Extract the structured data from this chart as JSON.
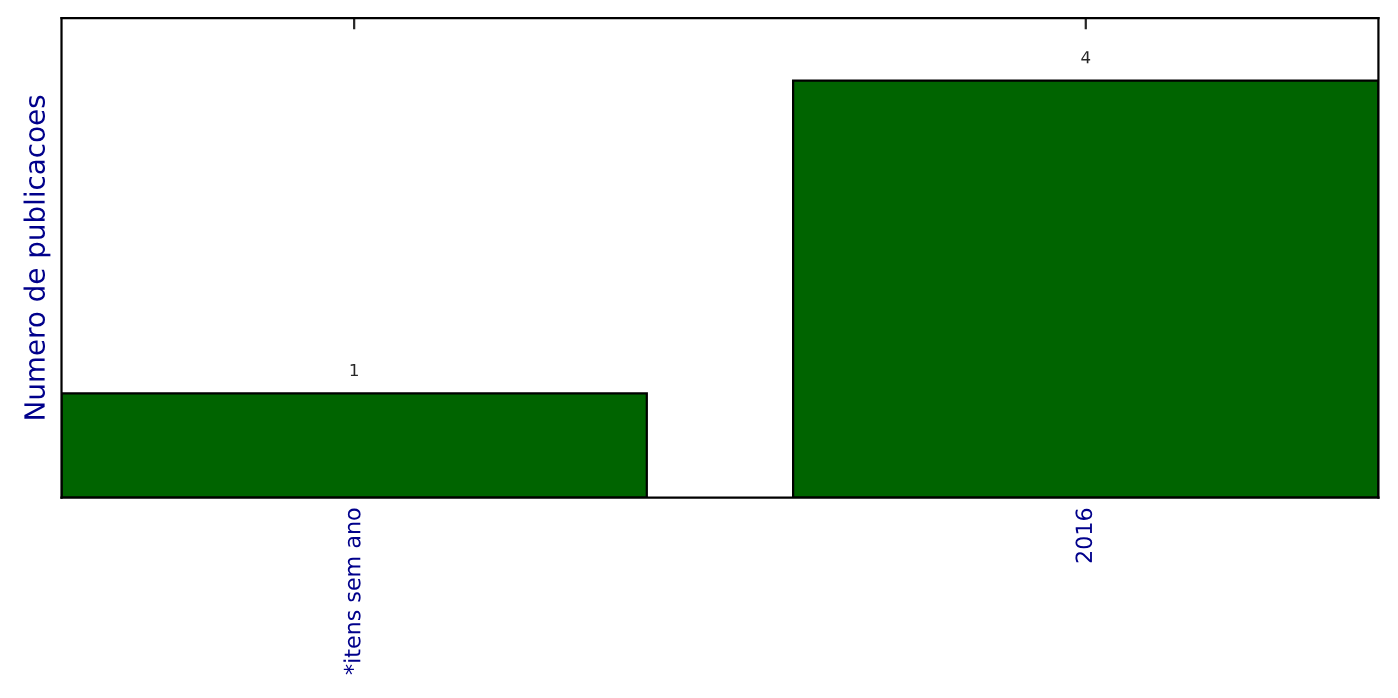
{
  "chart_data": {
    "type": "bar",
    "ylabel": "Numero de publicacoes",
    "categories": [
      "*itens sem ano",
      "2016"
    ],
    "values": [
      1,
      4
    ],
    "color": "#006400",
    "data_labels": true,
    "tick_labels": "x",
    "grid": false,
    "legend": false
  }
}
